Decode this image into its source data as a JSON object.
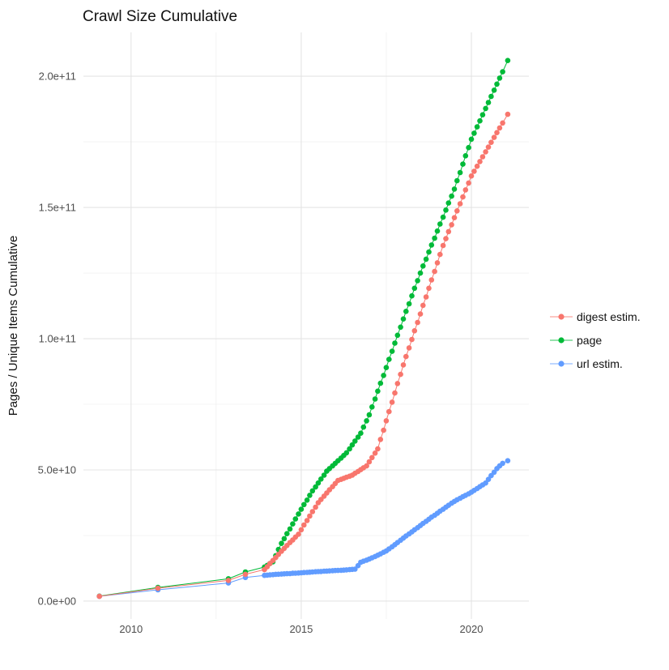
{
  "title": "Crawl Size Cumulative",
  "chart_data": {
    "type": "line",
    "title": "Crawl Size Cumulative",
    "xlabel": "",
    "ylabel": "Pages / Unique Items Cumulative",
    "value_unit_pages": 1000000000.0,
    "grid": true,
    "background": "#ffffff",
    "grid_major_color": "#e4e4e4",
    "grid_minor_color": "#f0f0f0",
    "axis_text_color": "#4d4d4d",
    "x_axis": {
      "range": [
        2008.6,
        2021.69
      ],
      "ticks": [
        {
          "value": 2010,
          "label": "2010"
        },
        {
          "value": 2015,
          "label": "2015"
        },
        {
          "value": 2020,
          "label": "2020"
        }
      ],
      "minor": [
        2012.5,
        2017.5
      ]
    },
    "y_axis": {
      "range": [
        -6.8,
        216.7
      ],
      "ticks": [
        {
          "value": 0,
          "label": "0.0e+00"
        },
        {
          "value": 50,
          "label": "5.0e+10"
        },
        {
          "value": 100,
          "label": "1.0e+11"
        },
        {
          "value": 150,
          "label": "1.5e+11"
        },
        {
          "value": 200,
          "label": "2.0e+11"
        }
      ],
      "minor": [
        25,
        75,
        125,
        175
      ]
    },
    "legend": {
      "position": "right",
      "items": [
        {
          "name": "digest estim.",
          "color": "#F8766D"
        },
        {
          "name": "page",
          "color": "#00BA38"
        },
        {
          "name": "url estim.",
          "color": "#619CFF"
        }
      ]
    },
    "draw_order": [
      1,
      2,
      0
    ],
    "series": [
      {
        "name": "digest estim.",
        "color": "#F8766D",
        "points": [
          [
            2009.07,
            1.8
          ],
          [
            2010.79,
            4.9
          ],
          [
            2012.86,
            7.9
          ],
          [
            2013.36,
            10.2
          ],
          [
            2013.92,
            12.0
          ],
          [
            2014.0,
            13.1
          ],
          [
            2014.08,
            14.3
          ],
          [
            2014.17,
            15.5
          ],
          [
            2014.25,
            16.6
          ],
          [
            2014.33,
            17.8
          ],
          [
            2014.42,
            19.0
          ],
          [
            2014.5,
            20.1
          ],
          [
            2014.58,
            21.2
          ],
          [
            2014.67,
            22.3
          ],
          [
            2014.75,
            23.3
          ],
          [
            2014.83,
            24.4
          ],
          [
            2014.92,
            25.5
          ],
          [
            2015.0,
            27.2
          ],
          [
            2015.08,
            29.0
          ],
          [
            2015.17,
            30.7
          ],
          [
            2015.25,
            32.4
          ],
          [
            2015.33,
            34.1
          ],
          [
            2015.42,
            35.8
          ],
          [
            2015.5,
            37.5
          ],
          [
            2015.58,
            38.7
          ],
          [
            2015.67,
            40.0
          ],
          [
            2015.75,
            41.2
          ],
          [
            2015.83,
            42.4
          ],
          [
            2015.92,
            43.6
          ],
          [
            2016.0,
            44.8
          ],
          [
            2016.08,
            46.0
          ],
          [
            2016.17,
            46.4
          ],
          [
            2016.25,
            46.8
          ],
          [
            2016.33,
            47.2
          ],
          [
            2016.42,
            47.6
          ],
          [
            2016.5,
            48.0
          ],
          [
            2016.58,
            48.7
          ],
          [
            2016.67,
            49.4
          ],
          [
            2016.75,
            50.1
          ],
          [
            2016.83,
            50.8
          ],
          [
            2016.92,
            51.5
          ],
          [
            2017.0,
            53.1
          ],
          [
            2017.08,
            54.7
          ],
          [
            2017.17,
            56.4
          ],
          [
            2017.25,
            58.0
          ],
          [
            2017.33,
            61.6
          ],
          [
            2017.42,
            65.1
          ],
          [
            2017.5,
            68.7
          ],
          [
            2017.58,
            72.2
          ],
          [
            2017.67,
            75.8
          ],
          [
            2017.75,
            79.3
          ],
          [
            2017.83,
            82.9
          ],
          [
            2017.92,
            86.4
          ],
          [
            2018.0,
            90.0
          ],
          [
            2018.08,
            93.2
          ],
          [
            2018.17,
            96.5
          ],
          [
            2018.25,
            99.7
          ],
          [
            2018.33,
            103.0
          ],
          [
            2018.42,
            106.2
          ],
          [
            2018.5,
            109.4
          ],
          [
            2018.58,
            112.7
          ],
          [
            2018.67,
            115.9
          ],
          [
            2018.75,
            119.2
          ],
          [
            2018.83,
            122.4
          ],
          [
            2018.92,
            125.6
          ],
          [
            2019.0,
            128.9
          ],
          [
            2019.08,
            132.1
          ],
          [
            2019.17,
            135.5
          ],
          [
            2019.25,
            138.1
          ],
          [
            2019.33,
            140.8
          ],
          [
            2019.42,
            143.4
          ],
          [
            2019.5,
            146.1
          ],
          [
            2019.58,
            148.7
          ],
          [
            2019.67,
            151.4
          ],
          [
            2019.75,
            154.0
          ],
          [
            2019.83,
            156.7
          ],
          [
            2019.92,
            159.3
          ],
          [
            2020.0,
            162.0
          ],
          [
            2020.08,
            163.8
          ],
          [
            2020.17,
            165.7
          ],
          [
            2020.25,
            167.5
          ],
          [
            2020.33,
            169.3
          ],
          [
            2020.42,
            171.2
          ],
          [
            2020.5,
            173.0
          ],
          [
            2020.58,
            174.8
          ],
          [
            2020.67,
            176.7
          ],
          [
            2020.75,
            178.5
          ],
          [
            2020.83,
            180.3
          ],
          [
            2020.92,
            182.2
          ],
          [
            2021.07,
            185.5
          ]
        ]
      },
      {
        "name": "page",
        "color": "#00BA38",
        "points": [
          [
            2009.07,
            1.9
          ],
          [
            2010.79,
            5.2
          ],
          [
            2012.86,
            8.5
          ],
          [
            2013.36,
            11.1
          ],
          [
            2013.92,
            13.0
          ],
          [
            2014.0,
            13.6
          ],
          [
            2014.08,
            14.3
          ],
          [
            2014.17,
            15.0
          ],
          [
            2014.25,
            17.3
          ],
          [
            2014.33,
            19.7
          ],
          [
            2014.42,
            22.0
          ],
          [
            2014.5,
            23.8
          ],
          [
            2014.58,
            25.7
          ],
          [
            2014.67,
            27.5
          ],
          [
            2014.75,
            29.4
          ],
          [
            2014.83,
            31.3
          ],
          [
            2014.92,
            33.2
          ],
          [
            2015.0,
            35.0
          ],
          [
            2015.08,
            36.8
          ],
          [
            2015.17,
            38.5
          ],
          [
            2015.25,
            40.3
          ],
          [
            2015.33,
            42.0
          ],
          [
            2015.42,
            43.5
          ],
          [
            2015.5,
            45.0
          ],
          [
            2015.58,
            46.5
          ],
          [
            2015.67,
            48.0
          ],
          [
            2015.75,
            49.5
          ],
          [
            2015.83,
            50.5
          ],
          [
            2015.92,
            51.5
          ],
          [
            2016.0,
            52.5
          ],
          [
            2016.08,
            53.5
          ],
          [
            2016.17,
            54.5
          ],
          [
            2016.25,
            55.5
          ],
          [
            2016.33,
            56.5
          ],
          [
            2016.42,
            58.0
          ],
          [
            2016.5,
            59.5
          ],
          [
            2016.58,
            61.0
          ],
          [
            2016.67,
            62.5
          ],
          [
            2016.75,
            64.0
          ],
          [
            2016.83,
            66.3
          ],
          [
            2016.92,
            68.7
          ],
          [
            2017.0,
            71.0
          ],
          [
            2017.08,
            74.0
          ],
          [
            2017.17,
            77.0
          ],
          [
            2017.25,
            80.0
          ],
          [
            2017.33,
            83.0
          ],
          [
            2017.42,
            86.0
          ],
          [
            2017.5,
            89.0
          ],
          [
            2017.58,
            92.1
          ],
          [
            2017.67,
            95.2
          ],
          [
            2017.75,
            98.3
          ],
          [
            2017.83,
            101.3
          ],
          [
            2017.92,
            104.4
          ],
          [
            2018.0,
            107.5
          ],
          [
            2018.08,
            110.4
          ],
          [
            2018.17,
            113.3
          ],
          [
            2018.25,
            116.3
          ],
          [
            2018.33,
            119.2
          ],
          [
            2018.42,
            122.1
          ],
          [
            2018.5,
            125.0
          ],
          [
            2018.58,
            127.7
          ],
          [
            2018.67,
            130.3
          ],
          [
            2018.75,
            133.0
          ],
          [
            2018.83,
            135.7
          ],
          [
            2018.92,
            138.3
          ],
          [
            2019.0,
            141.0
          ],
          [
            2019.08,
            143.7
          ],
          [
            2019.17,
            146.3
          ],
          [
            2019.25,
            149.0
          ],
          [
            2019.33,
            151.7
          ],
          [
            2019.42,
            154.3
          ],
          [
            2019.5,
            157.0
          ],
          [
            2019.58,
            160.2
          ],
          [
            2019.67,
            163.3
          ],
          [
            2019.75,
            166.5
          ],
          [
            2019.83,
            169.7
          ],
          [
            2019.92,
            172.8
          ],
          [
            2020.0,
            176.0
          ],
          [
            2020.08,
            178.3
          ],
          [
            2020.17,
            180.7
          ],
          [
            2020.25,
            183.0
          ],
          [
            2020.33,
            185.3
          ],
          [
            2020.42,
            187.7
          ],
          [
            2020.5,
            190.0
          ],
          [
            2020.58,
            192.3
          ],
          [
            2020.67,
            194.7
          ],
          [
            2020.75,
            197.0
          ],
          [
            2020.83,
            199.3
          ],
          [
            2020.92,
            201.7
          ],
          [
            2021.07,
            206.0
          ]
        ]
      },
      {
        "name": "url estim.",
        "color": "#619CFF",
        "points": [
          [
            2009.07,
            1.8
          ],
          [
            2010.79,
            4.3
          ],
          [
            2012.86,
            6.9
          ],
          [
            2013.36,
            9.0
          ],
          [
            2013.92,
            9.8
          ],
          [
            2014.0,
            9.9
          ],
          [
            2014.08,
            10.0
          ],
          [
            2014.17,
            10.1
          ],
          [
            2014.25,
            10.2
          ],
          [
            2014.33,
            10.25
          ],
          [
            2014.42,
            10.3
          ],
          [
            2014.5,
            10.4
          ],
          [
            2014.58,
            10.45
          ],
          [
            2014.67,
            10.5
          ],
          [
            2014.75,
            10.6
          ],
          [
            2014.83,
            10.65
          ],
          [
            2014.92,
            10.7
          ],
          [
            2015.0,
            10.8
          ],
          [
            2015.08,
            10.9
          ],
          [
            2015.17,
            10.95
          ],
          [
            2015.25,
            11.0
          ],
          [
            2015.33,
            11.1
          ],
          [
            2015.42,
            11.2
          ],
          [
            2015.5,
            11.25
          ],
          [
            2015.58,
            11.3
          ],
          [
            2015.67,
            11.4
          ],
          [
            2015.75,
            11.45
          ],
          [
            2015.83,
            11.5
          ],
          [
            2015.92,
            11.6
          ],
          [
            2016.0,
            11.65
          ],
          [
            2016.08,
            11.7
          ],
          [
            2016.17,
            11.75
          ],
          [
            2016.25,
            11.8
          ],
          [
            2016.33,
            11.9
          ],
          [
            2016.42,
            12.0
          ],
          [
            2016.5,
            12.1
          ],
          [
            2016.58,
            12.2
          ],
          [
            2016.67,
            13.5
          ],
          [
            2016.75,
            14.8
          ],
          [
            2016.83,
            15.2
          ],
          [
            2016.92,
            15.6
          ],
          [
            2017.0,
            16.0
          ],
          [
            2017.08,
            16.5
          ],
          [
            2017.17,
            17.0
          ],
          [
            2017.25,
            17.5
          ],
          [
            2017.33,
            18.0
          ],
          [
            2017.42,
            18.6
          ],
          [
            2017.5,
            19.1
          ],
          [
            2017.58,
            19.9
          ],
          [
            2017.67,
            20.7
          ],
          [
            2017.75,
            21.5
          ],
          [
            2017.83,
            22.3
          ],
          [
            2017.92,
            23.2
          ],
          [
            2018.0,
            24.0
          ],
          [
            2018.08,
            24.8
          ],
          [
            2018.17,
            25.6
          ],
          [
            2018.25,
            26.4
          ],
          [
            2018.33,
            27.2
          ],
          [
            2018.42,
            28.0
          ],
          [
            2018.5,
            28.8
          ],
          [
            2018.58,
            29.6
          ],
          [
            2018.67,
            30.4
          ],
          [
            2018.75,
            31.2
          ],
          [
            2018.83,
            32.0
          ],
          [
            2018.92,
            32.7
          ],
          [
            2019.0,
            33.5
          ],
          [
            2019.08,
            34.3
          ],
          [
            2019.17,
            35.0
          ],
          [
            2019.25,
            35.8
          ],
          [
            2019.33,
            36.5
          ],
          [
            2019.42,
            37.3
          ],
          [
            2019.5,
            38.0
          ],
          [
            2019.58,
            38.6
          ],
          [
            2019.67,
            39.2
          ],
          [
            2019.75,
            39.8
          ],
          [
            2019.83,
            40.3
          ],
          [
            2019.92,
            40.9
          ],
          [
            2020.0,
            41.5
          ],
          [
            2020.08,
            42.2
          ],
          [
            2020.17,
            42.9
          ],
          [
            2020.25,
            43.6
          ],
          [
            2020.33,
            44.3
          ],
          [
            2020.42,
            45.0
          ],
          [
            2020.5,
            46.4
          ],
          [
            2020.58,
            47.8
          ],
          [
            2020.67,
            49.1
          ],
          [
            2020.75,
            50.5
          ],
          [
            2020.83,
            51.5
          ],
          [
            2020.92,
            52.5
          ],
          [
            2021.07,
            53.5
          ]
        ]
      }
    ]
  }
}
